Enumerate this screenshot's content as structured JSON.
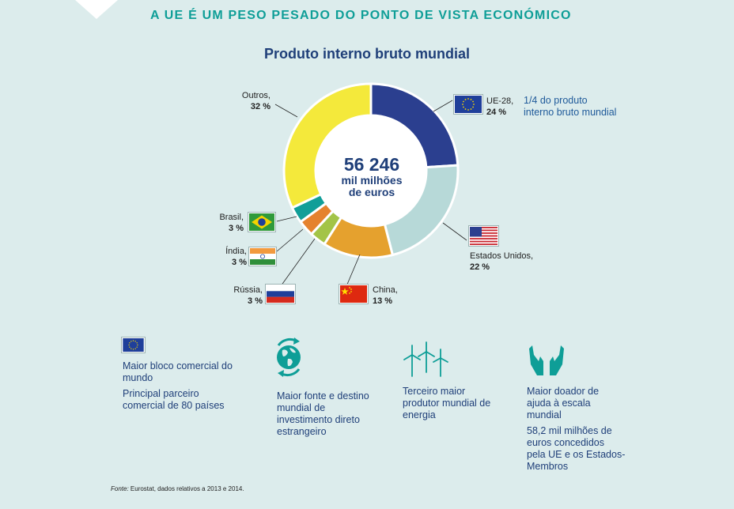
{
  "headline": "A UE É UM PESO PESADO DO PONTO DE VISTA ECONÓMICO",
  "chart_data": {
    "type": "pie",
    "title": "Produto interno bruto mundial",
    "center_value": "56 246",
    "center_unit_line1": "mil milhões",
    "center_unit_line2": "de euros",
    "slices": [
      {
        "label": "UE-28,",
        "value": 24,
        "value_label": "24 %",
        "color": "#2b3f8f"
      },
      {
        "label": "Estados Unidos,",
        "value": 22,
        "value_label": "22 %",
        "color": "#b7d9d8"
      },
      {
        "label": "China,",
        "value": 13,
        "value_label": "13 %",
        "color": "#e5a12e"
      },
      {
        "label": "Rússia,",
        "value": 3,
        "value_label": "3 %",
        "color": "#a3c447"
      },
      {
        "label": "Índia,",
        "value": 3,
        "value_label": "3 %",
        "color": "#e5822e"
      },
      {
        "label": "Brasil,",
        "value": 3,
        "value_label": "3 %",
        "color": "#119e98"
      },
      {
        "label": "Outros,",
        "value": 32,
        "value_label": "32 %",
        "color": "#f4e93b"
      }
    ],
    "annotation": "1/4 do produto interno bruto mundial"
  },
  "features": {
    "f1_line1": "Maior bloco comercial do mundo",
    "f1_line2": "Principal parceiro comercial de 80 países",
    "f2": "Maior fonte e destino mundial de investimento direto estrangeiro",
    "f3": "Terceiro maior produtor mundial de energia",
    "f4_line1": "Maior doador de ajuda à escala mundial",
    "f4_line2": "58,2 mil milhões de euros concedidos pela UE e os Estados-Membros"
  },
  "source": {
    "label": "Fonte:",
    "text": " Eurostat, dados relativos a 2013 e 2014."
  },
  "icons": {
    "eu_flag": "eu-flag-icon",
    "us_flag": "us-flag-icon",
    "china_flag": "china-flag-icon",
    "russia_flag": "russia-flag-icon",
    "india_flag": "india-flag-icon",
    "brazil_flag": "brazil-flag-icon",
    "globe": "globe-icon",
    "wind": "wind-turbine-icon",
    "hands": "hands-icon"
  },
  "colors": {
    "accent": "#0e9e97",
    "text": "#1f3f79",
    "background": "#dcecec"
  }
}
